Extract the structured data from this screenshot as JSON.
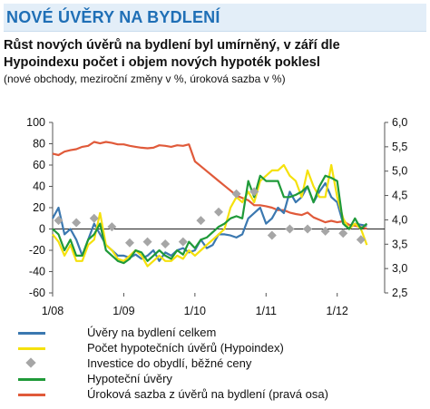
{
  "header": {
    "banner": "NOVÉ ÚVĚRY NA BYDLENÍ",
    "subtitle_line1": "Růst nových úvěrů na bydlení byl umírněný, v září dle",
    "subtitle_line2": "Hypoindexu počet i objem nových hypoték poklesl",
    "note": "(nové obchody, meziroční změny v %, úroková sazba v %)"
  },
  "chart_data": {
    "type": "line",
    "x_start": "2008-01",
    "x_end": "2012-09",
    "x_ticks": [
      {
        "label": "1/08",
        "month_index": 0
      },
      {
        "label": "1/09",
        "month_index": 12
      },
      {
        "label": "1/10",
        "month_index": 24
      },
      {
        "label": "1/11",
        "month_index": 36
      },
      {
        "label": "1/12",
        "month_index": 48
      }
    ],
    "y_left": {
      "min": -60,
      "max": 100,
      "ticks": [
        100,
        80,
        60,
        40,
        20,
        0,
        -20,
        -40,
        -60
      ]
    },
    "y_right": {
      "min": 2.5,
      "max": 6.0,
      "ticks": [
        "6,0",
        "5,5",
        "5,0",
        "4,5",
        "4,0",
        "3,5",
        "3,0",
        "2,5"
      ]
    },
    "y_right_values": [
      6.0,
      5.5,
      5.0,
      4.5,
      4.0,
      3.5,
      3.0,
      2.5
    ],
    "series": [
      {
        "name": "Úvěry na bydlení celkem",
        "color": "#3b78b0",
        "axis": "left",
        "values": [
          10,
          20,
          -5,
          0,
          -10,
          -25,
          -10,
          5,
          -5,
          -15,
          -20,
          -25,
          -25,
          -27,
          -24,
          -28,
          -25,
          -20,
          -30,
          -22,
          -25,
          -20,
          -18,
          -22,
          -20,
          -10,
          -18,
          -15,
          -5,
          -5,
          -6,
          -8,
          -5,
          10,
          15,
          20,
          5,
          10,
          20,
          15,
          35,
          25,
          30,
          40,
          25,
          35,
          43,
          30,
          25,
          5,
          0,
          5,
          4,
          3
        ]
      },
      {
        "name": "Počet hypotečních úvěrů (Hypoindex)",
        "color": "#f5e10d",
        "axis": "left",
        "values": [
          -5,
          -12,
          -25,
          -15,
          -30,
          -30,
          -15,
          -10,
          15,
          -15,
          -20,
          -28,
          -30,
          -25,
          -20,
          -25,
          -35,
          -30,
          -25,
          -30,
          -30,
          -25,
          -28,
          -20,
          -25,
          -20,
          -15,
          -10,
          -5,
          0,
          20,
          30,
          25,
          35,
          25,
          45,
          50,
          55,
          55,
          60,
          50,
          45,
          30,
          55,
          40,
          30,
          30,
          60,
          30,
          10,
          0,
          5,
          0,
          -15
        ]
      },
      {
        "name": "Hypoteční úvěry",
        "color": "#1f9a39",
        "axis": "left",
        "values": [
          0,
          -5,
          -20,
          -10,
          -25,
          -25,
          -10,
          -5,
          5,
          -20,
          -25,
          -30,
          -32,
          -28,
          -20,
          -22,
          -30,
          -25,
          -20,
          -25,
          -28,
          -20,
          -24,
          -12,
          -18,
          -10,
          -8,
          -3,
          2,
          5,
          10,
          12,
          10,
          45,
          30,
          50,
          45,
          45,
          45,
          30,
          30,
          32,
          35,
          40,
          25,
          40,
          50,
          48,
          45,
          5,
          0,
          10,
          0,
          5
        ]
      },
      {
        "name": "Úroková sazba z úvěrů na bydlení (pravá osa)",
        "color": "#e05a3a",
        "axis": "right",
        "values": [
          5.36,
          5.33,
          5.4,
          5.43,
          5.45,
          5.5,
          5.52,
          5.6,
          5.57,
          5.6,
          5.58,
          5.55,
          5.55,
          5.52,
          5.5,
          5.48,
          5.47,
          5.48,
          5.53,
          5.52,
          5.5,
          5.53,
          5.52,
          5.55,
          5.2,
          5.1,
          5.0,
          4.9,
          4.8,
          4.7,
          4.6,
          4.5,
          4.45,
          4.4,
          4.3,
          4.3,
          4.28,
          4.25,
          4.2,
          4.2,
          4.15,
          4.12,
          4.1,
          4.15,
          4.05,
          4.0,
          3.95,
          3.98,
          3.95,
          3.97,
          3.9,
          3.88,
          3.85,
          3.82
        ]
      },
      {
        "name": "Investice do obydlí, běžné ceny",
        "color": "#a6a6a6",
        "axis": "left",
        "marker": "diamond",
        "points": [
          {
            "month_index": 1,
            "value": 8
          },
          {
            "month_index": 4,
            "value": 6
          },
          {
            "month_index": 7,
            "value": 10
          },
          {
            "month_index": 10,
            "value": 2
          },
          {
            "month_index": 13,
            "value": -13
          },
          {
            "month_index": 16,
            "value": -12
          },
          {
            "month_index": 19,
            "value": -14
          },
          {
            "month_index": 22,
            "value": -12
          },
          {
            "month_index": 25,
            "value": 8
          },
          {
            "month_index": 28,
            "value": 16
          },
          {
            "month_index": 31,
            "value": 33
          },
          {
            "month_index": 34,
            "value": 35
          },
          {
            "month_index": 37,
            "value": -6
          },
          {
            "month_index": 40,
            "value": 0
          },
          {
            "month_index": 43,
            "value": 0
          },
          {
            "month_index": 46,
            "value": -2
          },
          {
            "month_index": 49,
            "value": -4
          },
          {
            "month_index": 52,
            "value": -10
          }
        ]
      }
    ],
    "legend_order": [
      "Úvěry na bydlení celkem",
      "Počet hypotečních úvěrů (Hypoindex)",
      "Investice do obydlí, běžné ceny",
      "Hypoteční úvěry",
      "Úroková sazba z úvěrů na bydlení (pravá osa)"
    ]
  }
}
